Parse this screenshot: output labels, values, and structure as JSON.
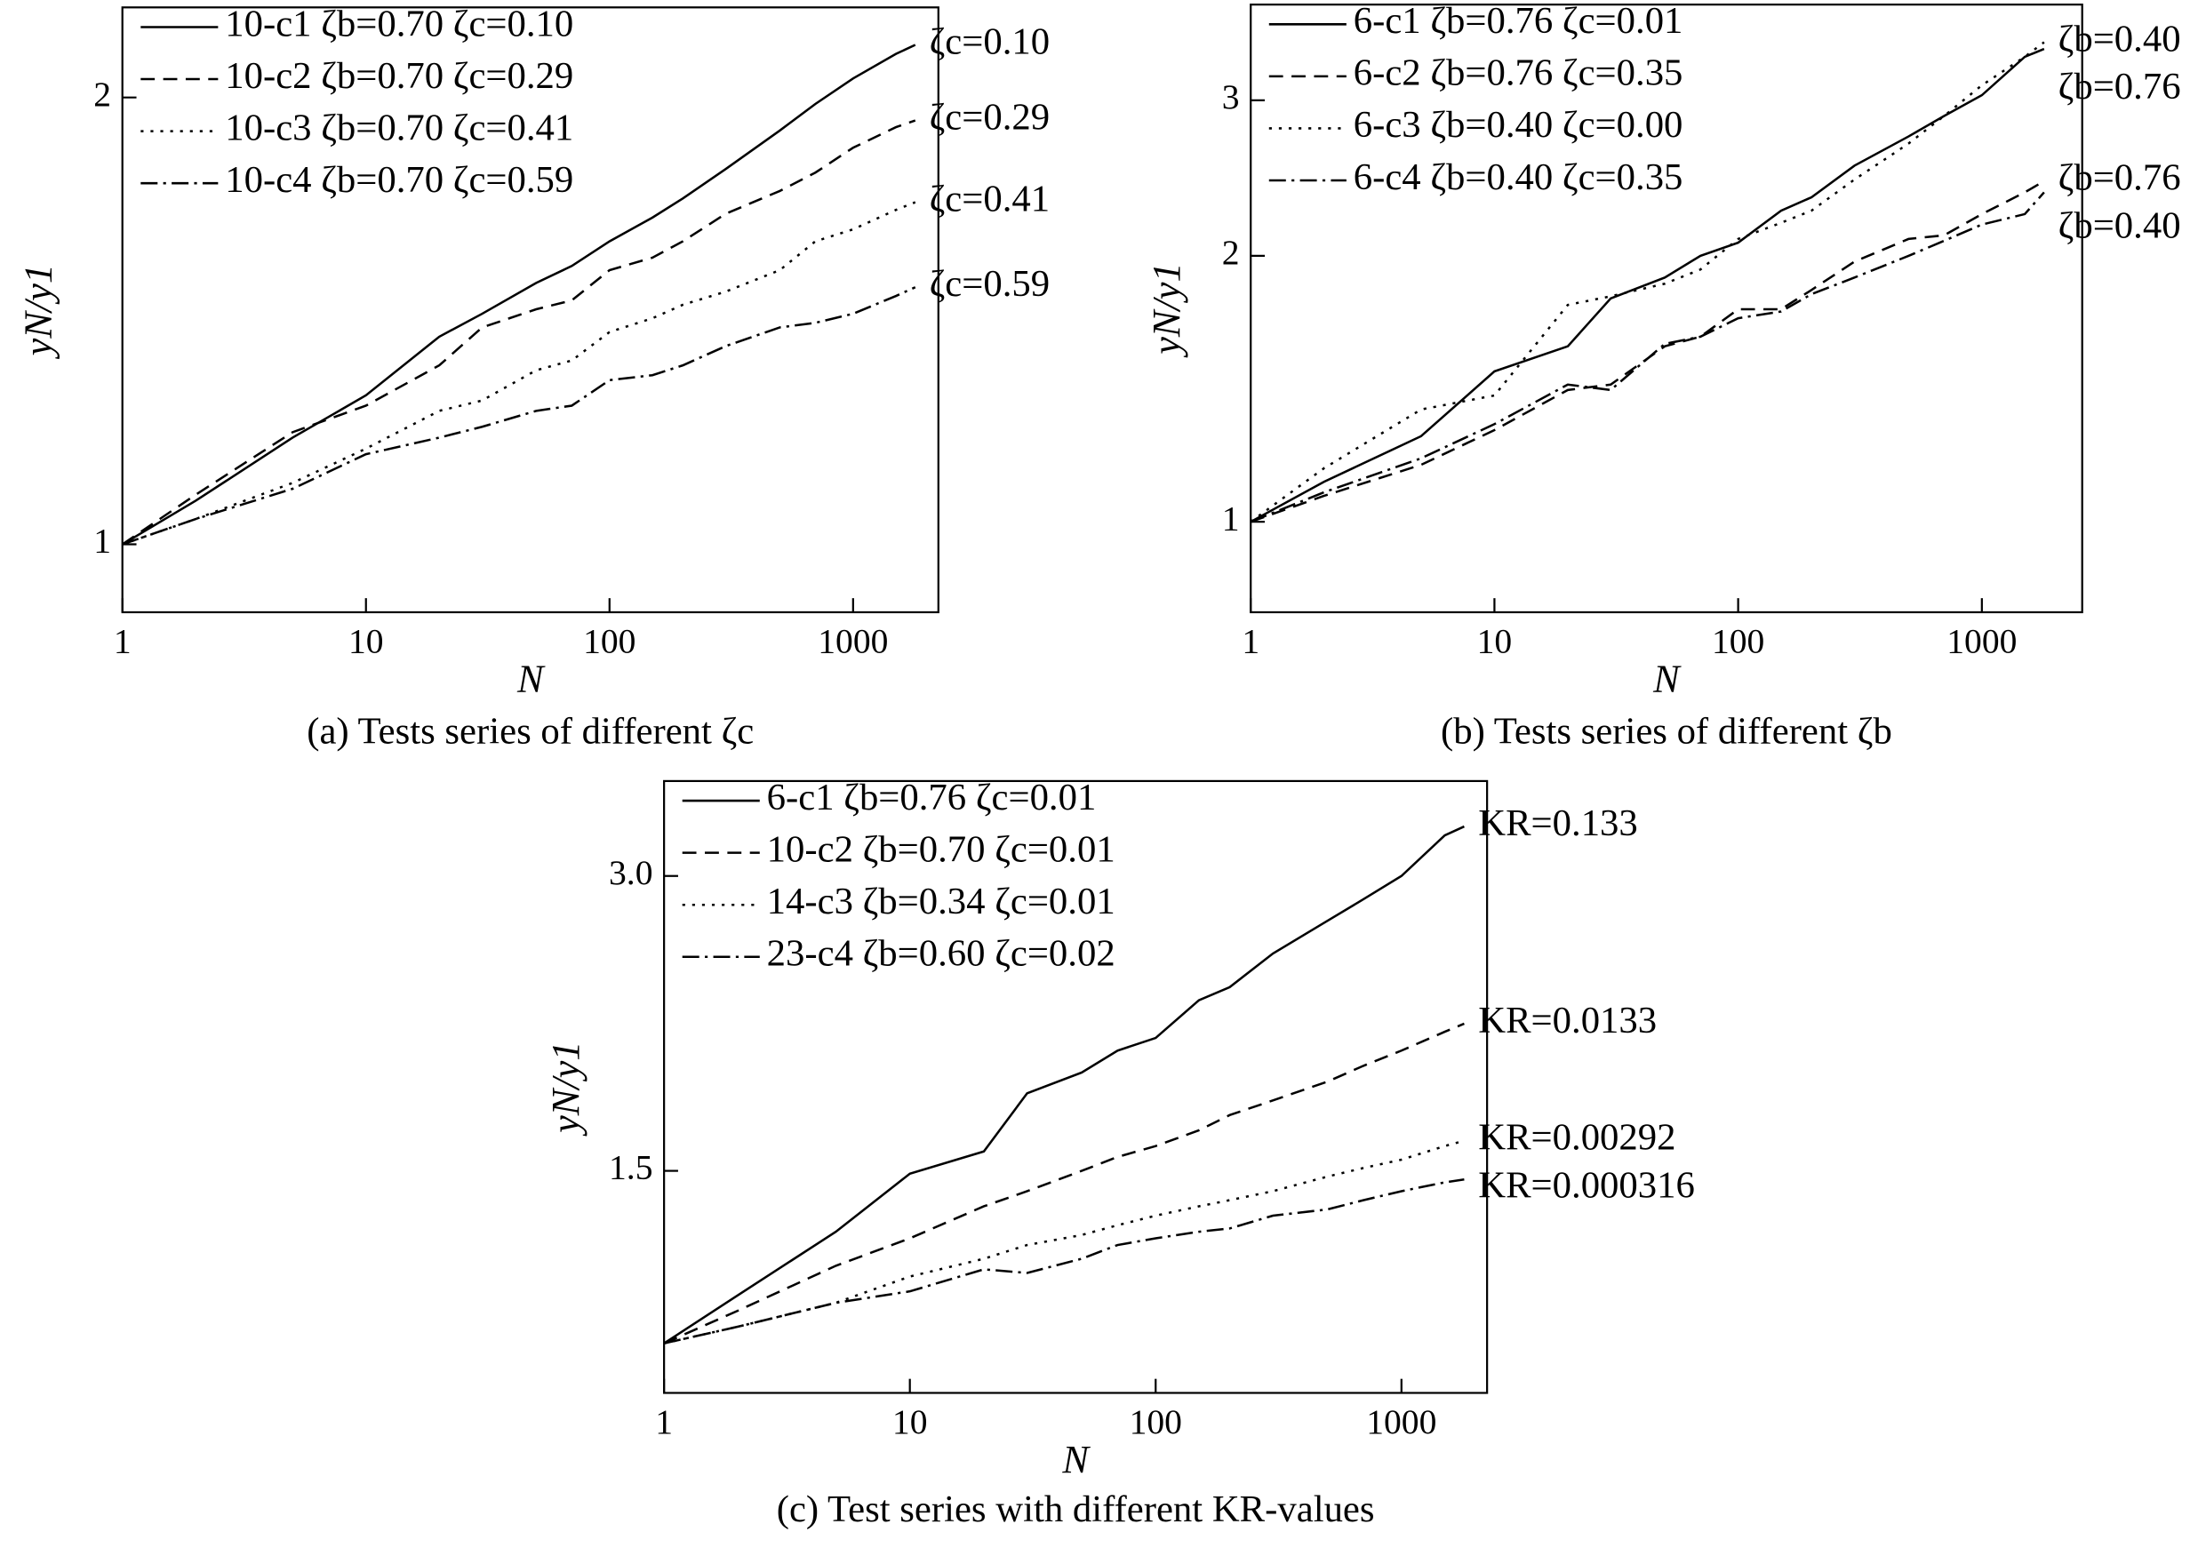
{
  "chart_data": [
    {
      "type": "line",
      "caption": "(a) Tests series of different ζc",
      "xlabel": "N",
      "ylabel": "yN/y1",
      "xscale": "log",
      "yscale": "log",
      "xlim": [
        1,
        2240
      ],
      "ylim": [
        0.9,
        2.3
      ],
      "xticks": [
        1,
        10,
        100,
        1000
      ],
      "yticks": [
        1,
        2
      ],
      "legend": "upper left",
      "x": [
        1,
        2,
        5,
        10,
        20,
        30,
        50,
        70,
        100,
        150,
        200,
        300,
        500,
        700,
        1000,
        1500,
        1800
      ],
      "series": [
        {
          "name": "10-c1 ζb=0.70 ζc=0.10",
          "label": "ζc=0.10",
          "color": "#000000",
          "linestyle": "solid",
          "values": [
            1,
            1.07,
            1.18,
            1.26,
            1.38,
            1.43,
            1.5,
            1.54,
            1.6,
            1.66,
            1.71,
            1.79,
            1.9,
            1.98,
            2.06,
            2.14,
            2.17
          ]
        },
        {
          "name": "10-c2 ζb=0.70 ζc=0.29",
          "label": "ζc=0.29",
          "color": "#000000",
          "linestyle": "dashed",
          "values": [
            1,
            1.08,
            1.19,
            1.24,
            1.32,
            1.4,
            1.44,
            1.46,
            1.53,
            1.56,
            1.6,
            1.67,
            1.73,
            1.78,
            1.85,
            1.91,
            1.93
          ]
        },
        {
          "name": "10-c3 ζb=0.70 ζc=0.41",
          "label": "ζc=0.41",
          "color": "#000000",
          "linestyle": "dotted",
          "values": [
            1,
            1.04,
            1.1,
            1.16,
            1.23,
            1.25,
            1.31,
            1.33,
            1.39,
            1.42,
            1.45,
            1.48,
            1.53,
            1.6,
            1.63,
            1.68,
            1.7
          ]
        },
        {
          "name": "10-c4 ζb=0.70 ζc=0.59",
          "label": "ζc=0.59",
          "color": "#000000",
          "linestyle": "dashdot",
          "values": [
            1,
            1.04,
            1.09,
            1.15,
            1.18,
            1.2,
            1.23,
            1.24,
            1.29,
            1.3,
            1.32,
            1.36,
            1.4,
            1.41,
            1.43,
            1.47,
            1.49
          ]
        }
      ]
    },
    {
      "type": "line",
      "caption": "(b) Tests series of different ζb",
      "xlabel": "N",
      "ylabel": "yN/y1",
      "xscale": "log",
      "yscale": "log",
      "xlim": [
        1,
        2580
      ],
      "ylim": [
        0.79,
        3.85
      ],
      "xticks": [
        1,
        10,
        100,
        1000
      ],
      "yticks": [
        1,
        2,
        3
      ],
      "legend": "upper left",
      "x": [
        1,
        2,
        5,
        10,
        20,
        30,
        50,
        70,
        100,
        150,
        200,
        300,
        500,
        700,
        1000,
        1500,
        1800
      ],
      "series": [
        {
          "name": "6-c1 ζb=0.76 ζc=0.01",
          "label": "ζb=0.76",
          "color": "#000000",
          "linestyle": "solid",
          "values": [
            1,
            1.11,
            1.25,
            1.48,
            1.58,
            1.79,
            1.89,
            2.0,
            2.07,
            2.25,
            2.33,
            2.53,
            2.73,
            2.88,
            3.04,
            3.36,
            3.43
          ]
        },
        {
          "name": "6-c2 ζb=0.76 ζc=0.35",
          "label": "ζb=0.76",
          "color": "#000000",
          "linestyle": "dashed",
          "values": [
            1,
            1.07,
            1.16,
            1.27,
            1.41,
            1.43,
            1.58,
            1.62,
            1.74,
            1.74,
            1.83,
            1.97,
            2.09,
            2.11,
            2.23,
            2.36,
            2.43
          ]
        },
        {
          "name": "6-c3 ζb=0.40 ζc=0.00",
          "label": "ζb=0.40",
          "color": "#000000",
          "linestyle": "dotted",
          "values": [
            1,
            1.15,
            1.34,
            1.39,
            1.76,
            1.8,
            1.86,
            1.93,
            2.09,
            2.18,
            2.25,
            2.44,
            2.68,
            2.88,
            3.12,
            3.36,
            3.49
          ]
        },
        {
          "name": "6-c4 ζb=0.40 ζc=0.35",
          "label": "ζb=0.40",
          "color": "#000000",
          "linestyle": "dashdot",
          "values": [
            1,
            1.08,
            1.18,
            1.29,
            1.43,
            1.41,
            1.59,
            1.62,
            1.7,
            1.73,
            1.81,
            1.89,
            2.0,
            2.08,
            2.17,
            2.23,
            2.36
          ]
        }
      ]
    },
    {
      "type": "line",
      "caption": "(c) Test series with different KR-values",
      "xlabel": "N",
      "ylabel": "yN/y1",
      "xscale": "log",
      "yscale": "log",
      "xlim": [
        1,
        2230
      ],
      "ylim": [
        0.89,
        3.75
      ],
      "xticks": [
        1,
        10,
        100,
        1000
      ],
      "yticks": [
        1.5,
        {
          "value": 3,
          "label": "3.0"
        }
      ],
      "legend": "upper left",
      "x": [
        1,
        2,
        5,
        10,
        20,
        30,
        50,
        70,
        100,
        150,
        200,
        300,
        500,
        700,
        1000,
        1500,
        1800
      ],
      "series": [
        {
          "name": "6-c1 ζb=0.76 ζc=0.01",
          "label": "KR=0.133",
          "color": "#000000",
          "linestyle": "solid",
          "values": [
            1,
            1.12,
            1.3,
            1.49,
            1.57,
            1.8,
            1.89,
            1.99,
            2.05,
            2.24,
            2.31,
            2.5,
            2.7,
            2.84,
            3.0,
            3.3,
            3.37
          ]
        },
        {
          "name": "10-c2 ζb=0.70 ζc=0.01",
          "label": "KR=0.0133",
          "color": "#000000",
          "linestyle": "dashed",
          "values": [
            1,
            1.08,
            1.2,
            1.28,
            1.38,
            1.43,
            1.5,
            1.55,
            1.59,
            1.65,
            1.71,
            1.77,
            1.85,
            1.92,
            1.99,
            2.08,
            2.12
          ]
        },
        {
          "name": "14-c3 ζb=0.34 ζc=0.01",
          "label": "KR=0.00292",
          "color": "#000000",
          "linestyle": "dotted",
          "values": [
            1,
            1.04,
            1.1,
            1.17,
            1.22,
            1.26,
            1.29,
            1.32,
            1.35,
            1.38,
            1.4,
            1.43,
            1.48,
            1.51,
            1.54,
            1.59,
            1.61
          ]
        },
        {
          "name": "23-c4 ζb=0.60 ζc=0.02",
          "label": "KR=0.000316",
          "color": "#000000",
          "linestyle": "dashdot",
          "values": [
            1,
            1.04,
            1.1,
            1.13,
            1.19,
            1.18,
            1.22,
            1.26,
            1.28,
            1.3,
            1.31,
            1.35,
            1.37,
            1.4,
            1.43,
            1.46,
            1.47
          ]
        }
      ]
    }
  ]
}
